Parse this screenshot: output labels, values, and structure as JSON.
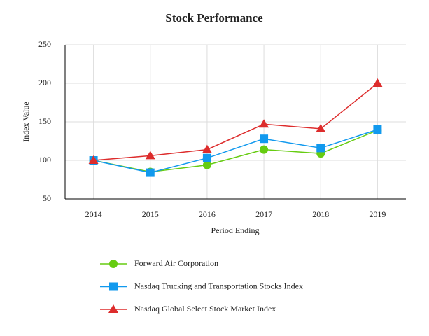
{
  "chart_data": {
    "type": "line",
    "title": "Stock Performance",
    "x_label": "Period Ending",
    "y_label": "Index Value",
    "categories": [
      "2014",
      "2015",
      "2016",
      "2017",
      "2018",
      "2019"
    ],
    "series": [
      {
        "name": "Forward Air Corporation",
        "color": "#66cc11",
        "marker": "circle",
        "values": [
          100,
          85,
          94,
          114,
          109,
          139
        ]
      },
      {
        "name": "Nasdaq Trucking and Transportation Stocks Index",
        "color": "#1199ee",
        "marker": "square",
        "values": [
          100,
          84,
          103,
          128,
          116,
          140
        ]
      },
      {
        "name": "Nasdaq Global Select Stock Market Index",
        "color": "#dd2c2c",
        "marker": "triangle",
        "values": [
          100,
          106,
          114,
          147,
          141,
          200
        ]
      }
    ],
    "ylim": [
      50,
      250
    ],
    "yticks": [
      50,
      100,
      150,
      200,
      250
    ],
    "grid": true,
    "legend": "bottom"
  }
}
